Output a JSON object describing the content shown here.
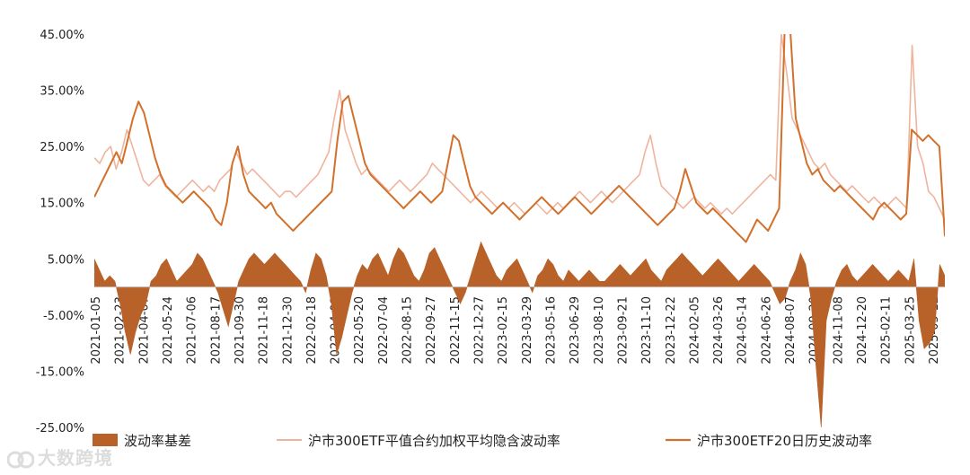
{
  "chart_data": {
    "type": "line",
    "y_axis": {
      "ticks": [
        "45.00%",
        "35.00%",
        "25.00%",
        "15.00%",
        "5.00%",
        "-5.00%",
        "-15.00%",
        "-25.00%"
      ],
      "tick_values": [
        45,
        35,
        25,
        15,
        5,
        -5,
        -15,
        -25
      ],
      "ylim": [
        -25,
        45
      ],
      "unit": "%"
    },
    "x_axis": {
      "ticks": [
        "2021-01-05",
        "2021-02-23",
        "2021-04-07",
        "2021-05-24",
        "2021-07-06",
        "2021-08-17",
        "2021-09-30",
        "2021-11-18",
        "2021-12-30",
        "2022-02-18",
        "2022-04-01",
        "2022-05-20",
        "2022-07-04",
        "2022-08-15",
        "2022-09-27",
        "2022-11-15",
        "2022-12-27",
        "2023-02-15",
        "2023-03-29",
        "2023-05-16",
        "2023-06-29",
        "2023-08-10",
        "2023-09-21",
        "2023-11-10",
        "2023-12-22",
        "2024-02-05",
        "2024-03-26",
        "2024-05-14",
        "2024-06-26",
        "2024-08-07",
        "2024-09-20",
        "2024-11-08",
        "2024-12-20",
        "2025-02-11",
        "2025-03-25",
        "2025-05-12"
      ]
    },
    "series": [
      {
        "name": "波动率基差",
        "kind": "area",
        "color": "#b8622a",
        "values": [
          5,
          3,
          1,
          2,
          1,
          -3,
          -8,
          -12,
          -8,
          -5,
          -3,
          1,
          2,
          4,
          5,
          3,
          1,
          2,
          3,
          4,
          6,
          5,
          3,
          1,
          -1,
          -4,
          -7,
          -3,
          1,
          3,
          5,
          6,
          5,
          4,
          5,
          6,
          5,
          4,
          3,
          2,
          1,
          -1,
          3,
          6,
          5,
          2,
          -3,
          -12,
          -9,
          -5,
          -1,
          2,
          4,
          3,
          5,
          6,
          4,
          2,
          5,
          7,
          6,
          4,
          2,
          1,
          3,
          6,
          7,
          5,
          3,
          1,
          -1,
          -3,
          -1,
          2,
          5,
          8,
          6,
          4,
          2,
          1,
          3,
          4,
          5,
          3,
          1,
          -1,
          2,
          3,
          5,
          4,
          2,
          1,
          3,
          2,
          1,
          2,
          3,
          2,
          1,
          1,
          2,
          3,
          4,
          3,
          2,
          3,
          4,
          5,
          3,
          2,
          1,
          3,
          4,
          5,
          6,
          5,
          4,
          3,
          2,
          3,
          4,
          5,
          4,
          3,
          2,
          1,
          2,
          3,
          4,
          3,
          2,
          1,
          -1,
          -3,
          -2,
          1,
          3,
          6,
          4,
          -2,
          -14,
          -25,
          -6,
          -2,
          1,
          3,
          4,
          2,
          1,
          2,
          3,
          4,
          3,
          2,
          1,
          2,
          3,
          2,
          1,
          5,
          -6,
          -11,
          -10,
          -8,
          4,
          2
        ]
      },
      {
        "name": "沪市300ETF平值合约加权平均隐含波动率",
        "kind": "line",
        "color": "#f0b49e",
        "values": [
          23,
          22,
          24,
          25,
          21,
          24,
          28,
          25,
          22,
          19,
          18,
          19,
          20,
          18,
          17,
          16,
          17,
          18,
          19,
          18,
          17,
          18,
          17,
          19,
          20,
          21,
          24,
          22,
          20,
          21,
          20,
          19,
          18,
          17,
          16,
          17,
          17,
          16,
          17,
          18,
          19,
          20,
          22,
          24,
          30,
          35,
          28,
          25,
          22,
          20,
          21,
          20,
          19,
          18,
          17,
          18,
          19,
          18,
          17,
          18,
          19,
          20,
          22,
          21,
          20,
          19,
          18,
          17,
          16,
          15,
          16,
          17,
          16,
          15,
          14,
          15,
          14,
          15,
          14,
          13,
          14,
          15,
          14,
          13,
          14,
          15,
          14,
          15,
          16,
          17,
          16,
          15,
          16,
          17,
          16,
          15,
          16,
          17,
          18,
          19,
          20,
          24,
          27,
          22,
          18,
          17,
          16,
          15,
          14,
          15,
          16,
          15,
          14,
          15,
          14,
          13,
          14,
          13,
          14,
          15,
          16,
          17,
          18,
          19,
          20,
          19,
          45,
          38,
          30,
          28,
          26,
          24,
          22,
          21,
          22,
          20,
          19,
          18,
          17,
          18,
          17,
          16,
          15,
          16,
          15,
          14,
          15,
          16,
          15,
          14,
          43,
          25,
          22,
          17,
          16,
          14,
          12
        ]
      },
      {
        "name": "沪市300ETF20日历史波动率",
        "kind": "line",
        "color": "#d1712c",
        "values": [
          16,
          18,
          20,
          22,
          24,
          22,
          26,
          30,
          33,
          31,
          27,
          23,
          20,
          18,
          17,
          16,
          15,
          16,
          17,
          16,
          15,
          14,
          12,
          11,
          15,
          22,
          25,
          20,
          17,
          16,
          15,
          14,
          15,
          13,
          12,
          11,
          10,
          11,
          12,
          13,
          14,
          15,
          16,
          17,
          26,
          33,
          34,
          30,
          26,
          22,
          20,
          19,
          18,
          17,
          16,
          15,
          14,
          15,
          16,
          17,
          16,
          15,
          16,
          17,
          22,
          27,
          26,
          22,
          18,
          16,
          15,
          14,
          13,
          14,
          15,
          14,
          13,
          12,
          13,
          14,
          15,
          16,
          15,
          14,
          13,
          14,
          15,
          16,
          15,
          14,
          13,
          14,
          15,
          16,
          17,
          18,
          17,
          16,
          15,
          14,
          13,
          12,
          11,
          12,
          13,
          14,
          17,
          21,
          18,
          15,
          14,
          13,
          14,
          13,
          12,
          11,
          10,
          9,
          8,
          10,
          12,
          11,
          10,
          12,
          14,
          46,
          48,
          30,
          26,
          22,
          20,
          21,
          19,
          18,
          17,
          18,
          17,
          16,
          15,
          14,
          13,
          12,
          14,
          15,
          14,
          13,
          12,
          13,
          28,
          27,
          26,
          27,
          26,
          25,
          9
        ]
      }
    ],
    "legend": {
      "position": "bottom",
      "items": [
        "波动率基差",
        "沪市300ETF平值合约加权平均隐含波动率",
        "沪市300ETF20日历史波动率"
      ]
    },
    "grid": false
  },
  "watermark": {
    "text": "大数跨境",
    "icon": "dsk-logo-icon"
  }
}
